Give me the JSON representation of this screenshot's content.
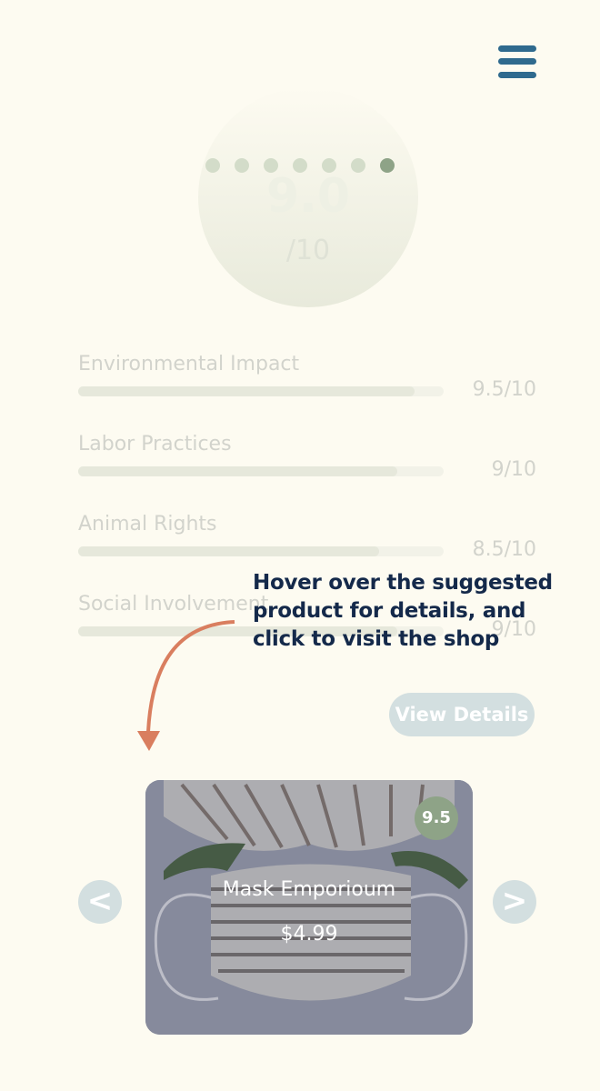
{
  "header": {
    "menu_icon": "hamburger-icon"
  },
  "score": {
    "value": "9.0",
    "denominator": "/10"
  },
  "carousel": {
    "dot_count": 7,
    "active_index": 6
  },
  "metrics": [
    {
      "label": "Environmental Impact",
      "value": "9.5/10",
      "score": 9.5
    },
    {
      "label": "Labor Practices",
      "value": "9/10",
      "score": 9
    },
    {
      "label": "Animal Rights",
      "value": "8.5/10",
      "score": 8.5
    },
    {
      "label": "Social Involvement",
      "value": "9/10",
      "score": 9
    }
  ],
  "actions": {
    "view_details": "View Details"
  },
  "tooltip": {
    "text": "Hover over the suggested product for details, and click to visit the shop"
  },
  "product": {
    "name": "Mask Emporioum",
    "price": "$4.99",
    "rating": "9.5",
    "prev_label": "<",
    "next_label": ">"
  },
  "colors": {
    "accent": "#2f6a8e",
    "green": "#8ea387",
    "tooltip_text": "#14294a",
    "arrow": "#d97e5f",
    "background": "#fdfbf1"
  }
}
